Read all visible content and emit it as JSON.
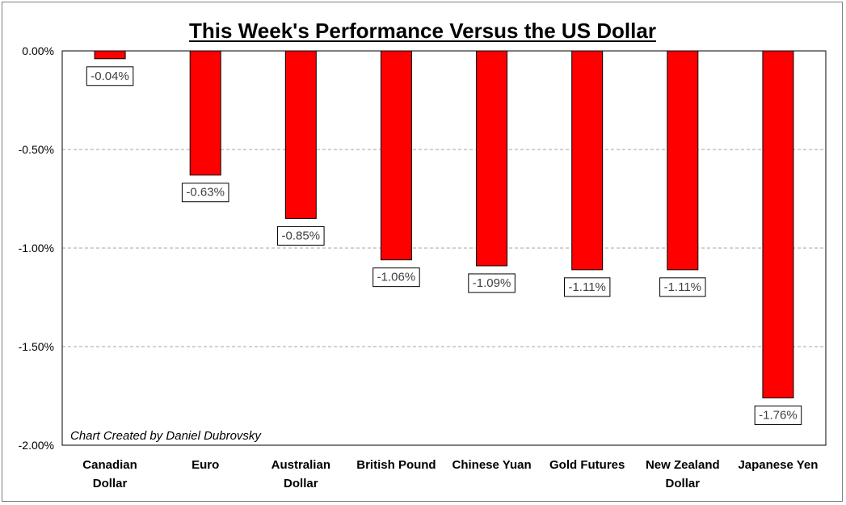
{
  "chart_data": {
    "type": "bar",
    "title": "This Week's Performance Versus the US Dollar",
    "credit": "Chart Created by Daniel Dubrovsky",
    "categories": [
      [
        "Canadian",
        "Dollar"
      ],
      [
        "Euro"
      ],
      [
        "Australian",
        "Dollar"
      ],
      [
        "British Pound"
      ],
      [
        "Chinese Yuan"
      ],
      [
        "Gold Futures"
      ],
      [
        "New Zealand",
        "Dollar"
      ],
      [
        "Japanese Yen"
      ]
    ],
    "values": [
      -0.04,
      -0.63,
      -0.85,
      -1.06,
      -1.09,
      -1.11,
      -1.11,
      -1.76
    ],
    "data_labels": [
      "-0.04%",
      "-0.63%",
      "-0.85%",
      "-1.06%",
      "-1.09%",
      "-1.11%",
      "-1.11%",
      "-1.76%"
    ],
    "yticks": [
      0,
      -0.5,
      -1.0,
      -1.5,
      -2.0
    ],
    "ytick_labels": [
      "0.00%",
      "-0.50%",
      "-1.00%",
      "-1.50%",
      "-2.00%"
    ],
    "ylim": [
      -2.0,
      0
    ],
    "bar_color": "#ff0000",
    "grid": true,
    "xlabel": "",
    "ylabel": ""
  }
}
